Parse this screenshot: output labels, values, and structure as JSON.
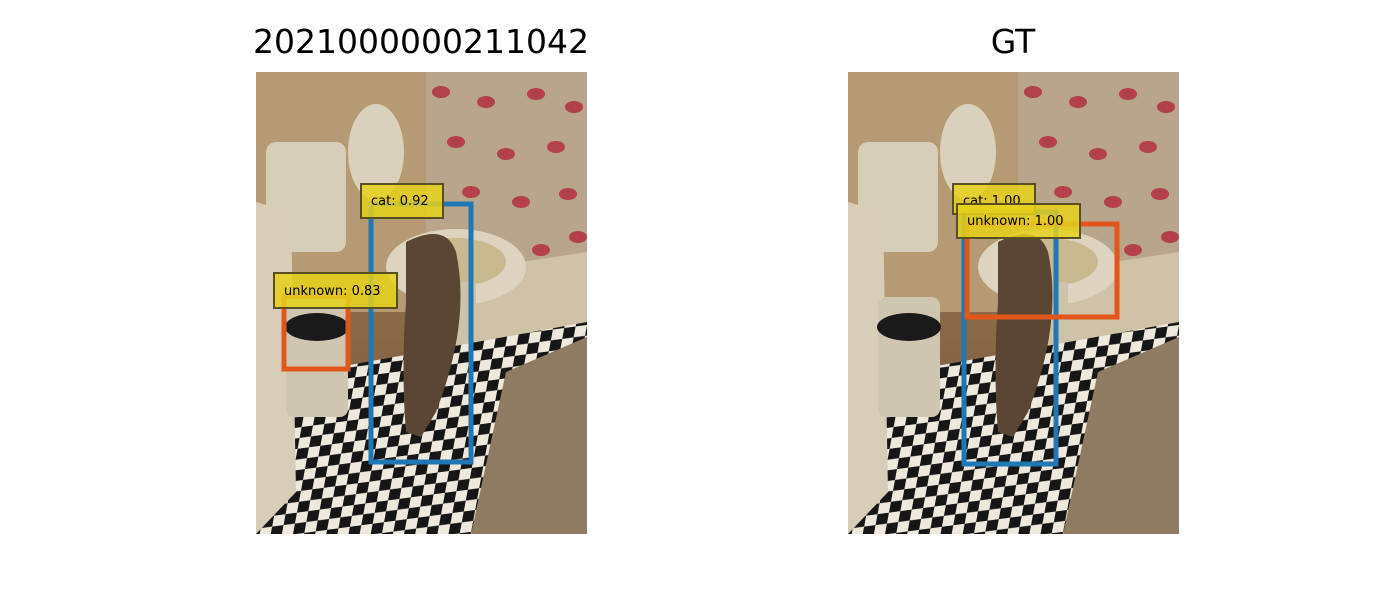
{
  "panels": [
    {
      "title": "2021000000211042",
      "detections": [
        {
          "label": "cat: 0.92",
          "color": "#1f77b4"
        },
        {
          "label": "unknown: 0.83",
          "color": "#e0561b"
        }
      ]
    },
    {
      "title": "GT",
      "detections": [
        {
          "label": "cat: 1.00",
          "color": "#1f77b4"
        },
        {
          "label": "unknown: 1.00",
          "color": "#e0561b"
        }
      ]
    }
  ],
  "colors": {
    "label_fill": "#e6d11a",
    "label_border": "#5a4f20",
    "cat_box": "#1f77b4",
    "unknown_box": "#e0561b"
  }
}
